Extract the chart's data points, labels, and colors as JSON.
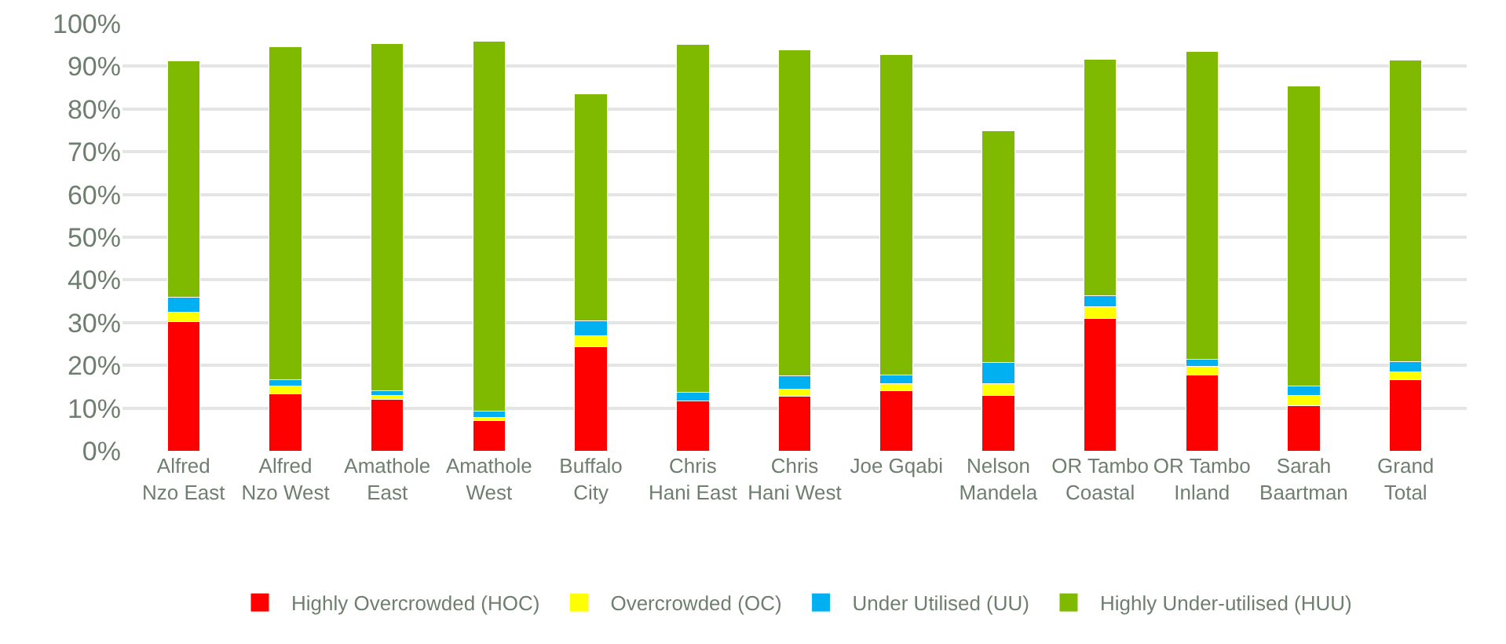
{
  "chart_data": {
    "type": "bar",
    "stacked": true,
    "categories": [
      "Alfred Nzo East",
      "Alfred Nzo West",
      "Amathole East",
      "Amathole West",
      "Buffalo City",
      "Chris Hani East",
      "Chris Hani West",
      "Joe Gqabi",
      "Nelson Mandela",
      "OR Tambo Coastal",
      "OR Tambo Inland",
      "Sarah Baartman",
      "Grand Total"
    ],
    "series": [
      {
        "name": "Highly Overcrowded (HOC)",
        "color": "#ff0000",
        "values": [
          30.2,
          13.4,
          12.1,
          7.0,
          24.3,
          11.6,
          12.7,
          14.0,
          13.0,
          30.9,
          17.7,
          10.5,
          16.7
        ]
      },
      {
        "name": "Overcrowded (OC)",
        "color": "#ffff00",
        "values": [
          2.2,
          1.8,
          0.9,
          0.9,
          2.6,
          null,
          1.8,
          1.8,
          2.7,
          2.8,
          2.0,
          2.4,
          1.8
        ]
      },
      {
        "name": "Under Utilised (UU)",
        "color": "#00b0f0",
        "values": [
          3.6,
          1.4,
          1.0,
          1.4,
          3.6,
          2.1,
          3.0,
          1.9,
          4.9,
          2.6,
          1.8,
          2.2,
          2.3
        ]
      },
      {
        "name": "Highly Under-utilised (HUU)",
        "color": "#7fba00",
        "values": [
          55.2,
          77.9,
          81.3,
          86.5,
          53.0,
          81.4,
          76.4,
          75.0,
          54.4,
          55.3,
          72.0,
          70.2,
          70.6
        ]
      }
    ],
    "ylim": [
      0,
      100
    ],
    "yticks": [
      {
        "value": 0,
        "label": "0%"
      },
      {
        "value": 10,
        "label": "10%"
      },
      {
        "value": 20,
        "label": "20%"
      },
      {
        "value": 30,
        "label": "30%"
      },
      {
        "value": 40,
        "label": "40%"
      },
      {
        "value": 50,
        "label": "50%"
      },
      {
        "value": 60,
        "label": "60%"
      },
      {
        "value": 70,
        "label": "70%"
      },
      {
        "value": 80,
        "label": "80%"
      },
      {
        "value": 90,
        "label": "90%"
      },
      {
        "value": 100,
        "label": "100%"
      }
    ],
    "grid": "y",
    "legend": "bottom"
  }
}
